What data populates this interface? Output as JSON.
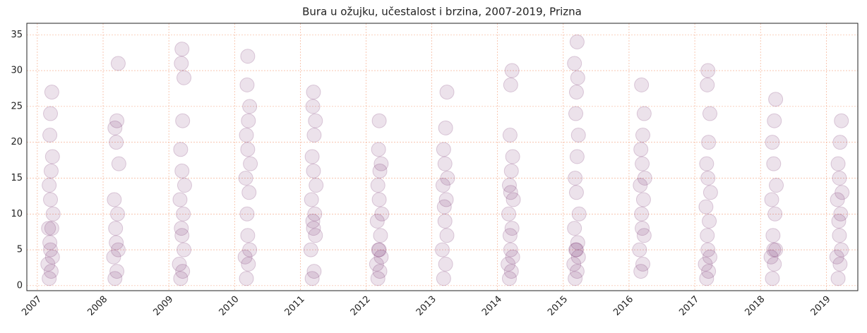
{
  "chart_data": {
    "type": "scatter",
    "title": "Bura u ožujku, učestalost i brzina, 2007-2019, Prizna",
    "color": "#6b1d62",
    "alpha": 0.13,
    "grid": true,
    "xlim": [
      2006.84,
      2019.48
    ],
    "ylim": [
      -0.7,
      36.6
    ],
    "xticks": [
      2007,
      2008,
      2009,
      2010,
      2011,
      2012,
      2013,
      2014,
      2015,
      2016,
      2017,
      2018,
      2019
    ],
    "yticks": [
      0,
      5,
      10,
      15,
      20,
      25,
      30,
      35
    ],
    "x": [
      2007.18,
      2007.21,
      2007.16,
      2007.23,
      2007.2,
      2007.19,
      2007.22,
      2007.17,
      2007.24,
      2007.2,
      2007.18,
      2007.21,
      2007.23,
      2007.19,
      2007.2,
      2007.22,
      2008.18,
      2008.21,
      2008.16,
      2008.23,
      2008.2,
      2008.19,
      2008.22,
      2008.17,
      2008.24,
      2008.2,
      2008.18,
      2008.21,
      2008.23,
      2009.18,
      2009.21,
      2009.16,
      2009.23,
      2009.2,
      2009.19,
      2009.22,
      2009.17,
      2009.24,
      2009.2,
      2009.18,
      2009.21,
      2009.23,
      2009.19,
      2009.2,
      2010.18,
      2010.21,
      2010.16,
      2010.23,
      2010.2,
      2010.19,
      2010.22,
      2010.17,
      2010.24,
      2010.2,
      2010.18,
      2010.21,
      2010.23,
      2010.19,
      2010.2,
      2011.18,
      2011.21,
      2011.16,
      2011.23,
      2011.2,
      2011.19,
      2011.22,
      2011.17,
      2011.24,
      2011.2,
      2011.18,
      2011.21,
      2011.23,
      2011.19,
      2011.2,
      2012.18,
      2012.21,
      2012.16,
      2012.23,
      2012.2,
      2012.19,
      2012.22,
      2012.17,
      2012.24,
      2012.2,
      2012.18,
      2012.21,
      2012.23,
      2012.19,
      2012.2,
      2013.18,
      2013.21,
      2013.16,
      2013.23,
      2013.2,
      2013.19,
      2013.22,
      2013.17,
      2013.24,
      2013.2,
      2013.18,
      2013.21,
      2013.23,
      2014.18,
      2014.21,
      2014.16,
      2014.23,
      2014.2,
      2014.19,
      2014.22,
      2014.17,
      2014.24,
      2014.2,
      2014.18,
      2014.21,
      2014.23,
      2014.19,
      2014.2,
      2014.22,
      2015.18,
      2015.21,
      2015.16,
      2015.23,
      2015.2,
      2015.19,
      2015.22,
      2015.17,
      2015.24,
      2015.2,
      2015.18,
      2015.21,
      2015.23,
      2015.19,
      2015.2,
      2015.22,
      2015.17,
      2015.21,
      2016.18,
      2016.21,
      2016.16,
      2016.23,
      2016.2,
      2016.19,
      2016.22,
      2016.17,
      2016.24,
      2016.2,
      2016.18,
      2016.21,
      2016.23,
      2016.19,
      2017.18,
      2017.21,
      2017.16,
      2017.23,
      2017.2,
      2017.19,
      2017.22,
      2017.17,
      2017.24,
      2017.2,
      2017.18,
      2017.21,
      2017.23,
      2017.19,
      2017.2,
      2018.18,
      2018.21,
      2018.16,
      2018.23,
      2018.2,
      2018.19,
      2018.22,
      2018.17,
      2018.24,
      2018.2,
      2018.18,
      2018.21,
      2018.23,
      2019.18,
      2019.21,
      2019.16,
      2019.23,
      2019.2,
      2019.19,
      2019.22,
      2019.17,
      2019.24,
      2019.2,
      2019.18,
      2019.21,
      2019.23
    ],
    "y": [
      1,
      2,
      3,
      4,
      5,
      6,
      8,
      8,
      10,
      12,
      14,
      16,
      18,
      21,
      24,
      27,
      1,
      2,
      4,
      5,
      6,
      8,
      10,
      12,
      17,
      20,
      22,
      23,
      31,
      1,
      2,
      3,
      5,
      7,
      8,
      10,
      12,
      14,
      16,
      19,
      23,
      29,
      31,
      33,
      1,
      3,
      4,
      5,
      7,
      10,
      13,
      15,
      17,
      19,
      21,
      23,
      25,
      28,
      32,
      1,
      2,
      5,
      7,
      8,
      9,
      10,
      12,
      14,
      16,
      18,
      21,
      23,
      25,
      27,
      1,
      2,
      3,
      4,
      5,
      5,
      7,
      9,
      10,
      12,
      14,
      16,
      17,
      19,
      23,
      1,
      3,
      5,
      7,
      9,
      11,
      12,
      14,
      15,
      17,
      19,
      22,
      27,
      1,
      2,
      3,
      4,
      5,
      7,
      8,
      10,
      12,
      13,
      14,
      16,
      18,
      21,
      28,
      30,
      1,
      2,
      3,
      4,
      5,
      5,
      6,
      8,
      10,
      13,
      15,
      18,
      21,
      24,
      27,
      29,
      31,
      34,
      2,
      3,
      5,
      7,
      8,
      10,
      12,
      14,
      15,
      17,
      19,
      21,
      24,
      28,
      1,
      2,
      3,
      4,
      5,
      7,
      9,
      11,
      13,
      15,
      17,
      20,
      24,
      28,
      30,
      1,
      3,
      4,
      5,
      5,
      7,
      10,
      12,
      14,
      17,
      20,
      23,
      26,
      1,
      3,
      4,
      5,
      7,
      9,
      10,
      12,
      13,
      15,
      17,
      20,
      23
    ]
  }
}
